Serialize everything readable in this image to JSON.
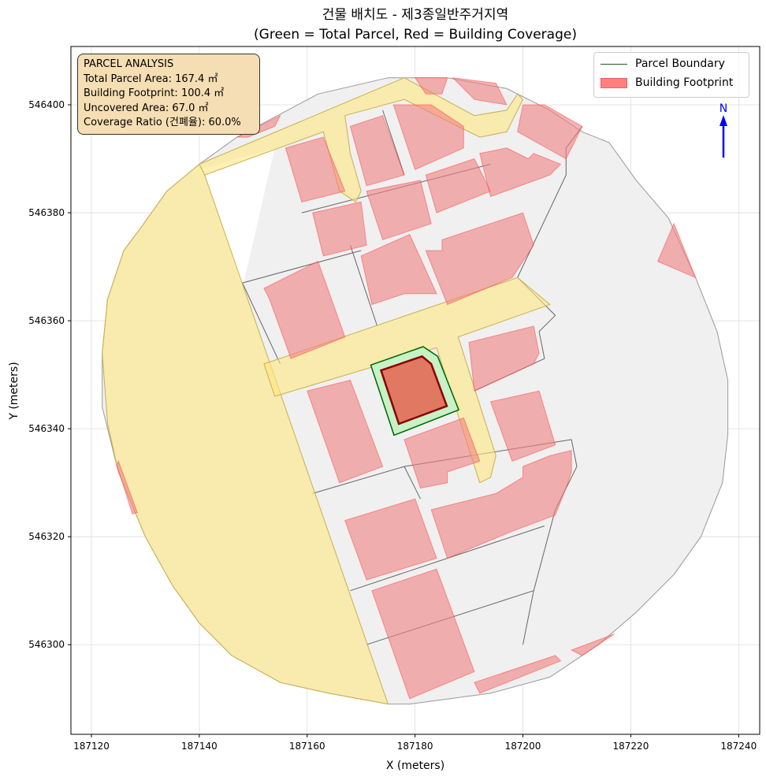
{
  "chart_data": {
    "type": "map",
    "title_line1": "건물 배치도 - 제3종일반주거지역",
    "title_line2": "(Green = Total Parcel, Red = Building Coverage)",
    "xlabel": "X (meters)",
    "ylabel": "Y (meters)",
    "xlim": [
      187116.2,
      187243.9
    ],
    "ylim": [
      546283.4,
      546410.8
    ],
    "x_ticks": [
      "187120",
      "187140",
      "187160",
      "187180",
      "187200",
      "187220",
      "187240"
    ],
    "x_tick_values": [
      187120,
      187140,
      187160,
      187180,
      187200,
      187220,
      187240
    ],
    "y_ticks": [
      "546300",
      "546320",
      "546340",
      "546360",
      "546380",
      "546400"
    ],
    "y_tick_values": [
      546300,
      546320,
      546340,
      546360,
      546380,
      546400
    ],
    "grid": true,
    "legend_placement": "top-right",
    "legend": [
      "Parcel Boundary",
      "Building Footprint"
    ],
    "north_label": "N",
    "coordinate_origin": [
      187120,
      546400
    ],
    "site_outline": [
      [
        2,
        -46
      ],
      [
        3,
        -36
      ],
      [
        6,
        -27
      ],
      [
        9,
        -23
      ],
      [
        14,
        -16
      ],
      [
        20,
        -11
      ],
      [
        27,
        -6
      ],
      [
        42,
        2
      ],
      [
        55,
        5
      ],
      [
        66,
        5
      ],
      [
        77,
        3
      ],
      [
        85,
        -1
      ],
      [
        91,
        -5
      ],
      [
        96,
        -7
      ],
      [
        101,
        -14
      ],
      [
        107,
        -21
      ],
      [
        112,
        -32
      ],
      [
        116,
        -42
      ],
      [
        118,
        -51
      ],
      [
        118,
        -61
      ],
      [
        117,
        -70
      ],
      [
        113,
        -80
      ],
      [
        108,
        -87
      ],
      [
        101,
        -94
      ],
      [
        94,
        -100
      ],
      [
        85,
        -106
      ],
      [
        74,
        -109
      ],
      [
        59,
        -111
      ],
      [
        55,
        -111
      ],
      [
        44,
        -109
      ],
      [
        35,
        -107
      ],
      [
        26,
        -102
      ],
      [
        20,
        -96
      ],
      [
        15,
        -89
      ],
      [
        10,
        -80
      ],
      [
        5,
        -68
      ],
      [
        2,
        -56
      ]
    ],
    "excluded_area": [
      [
        20,
        -12
      ],
      [
        34,
        -8
      ],
      [
        28,
        -34
      ],
      [
        21,
        -13
      ]
    ],
    "roads": [
      [
        [
          20,
          -11
        ],
        [
          21,
          -13
        ],
        [
          55,
          -111
        ],
        [
          44,
          -109
        ],
        [
          35,
          -107
        ],
        [
          26,
          -102
        ],
        [
          20,
          -96
        ],
        [
          15,
          -89
        ],
        [
          10,
          -80
        ],
        [
          5,
          -68
        ],
        [
          3,
          -59
        ],
        [
          2,
          -46
        ],
        [
          3,
          -36
        ],
        [
          6,
          -27
        ],
        [
          9,
          -23
        ],
        [
          14,
          -16
        ]
      ],
      [
        [
          20,
          -11
        ],
        [
          58,
          5
        ],
        [
          71,
          -2
        ],
        [
          77,
          -1
        ],
        [
          79,
          2
        ],
        [
          80,
          1
        ],
        [
          77,
          -5
        ],
        [
          72,
          -6
        ],
        [
          58,
          1
        ],
        [
          47,
          -2
        ],
        [
          48,
          -9
        ],
        [
          50,
          -16
        ],
        [
          49,
          -18
        ],
        [
          46,
          -16
        ],
        [
          43,
          -5
        ],
        [
          21,
          -13
        ]
      ],
      [
        [
          32,
          -48
        ],
        [
          79,
          -32
        ],
        [
          85,
          -37
        ],
        [
          68,
          -43
        ],
        [
          75,
          -65
        ],
        [
          74,
          -69
        ],
        [
          72,
          -70
        ],
        [
          64,
          -45
        ],
        [
          34,
          -54
        ]
      ]
    ],
    "neighbor_buildings": [
      [
        [
          36,
          -8
        ],
        [
          43,
          -6
        ],
        [
          47,
          -16
        ],
        [
          39,
          -18
        ]
      ],
      [
        [
          48,
          -4
        ],
        [
          54,
          -2
        ],
        [
          58,
          -13
        ],
        [
          51,
          -15
        ]
      ],
      [
        [
          56,
          0
        ],
        [
          63,
          0
        ],
        [
          69,
          -4
        ],
        [
          69,
          -8
        ],
        [
          60,
          -12
        ]
      ],
      [
        [
          60,
          5
        ],
        [
          66,
          5
        ],
        [
          65,
          2
        ],
        [
          62,
          2
        ]
      ],
      [
        [
          67,
          5
        ],
        [
          75,
          4
        ],
        [
          77,
          0
        ],
        [
          71,
          1
        ],
        [
          69,
          3
        ]
      ],
      [
        [
          41,
          -20
        ],
        [
          50,
          -18
        ],
        [
          51,
          -26
        ],
        [
          43,
          -28
        ]
      ],
      [
        [
          51,
          -16
        ],
        [
          61,
          -14
        ],
        [
          63,
          -22
        ],
        [
          54,
          -25
        ]
      ],
      [
        [
          62,
          -13
        ],
        [
          71,
          -10
        ],
        [
          74,
          -16
        ],
        [
          64,
          -20
        ]
      ],
      [
        [
          72,
          -9
        ],
        [
          77,
          -8
        ],
        [
          81,
          -10
        ],
        [
          82,
          -9
        ],
        [
          87,
          -11
        ],
        [
          85,
          -13
        ],
        [
          74,
          -17
        ]
      ],
      [
        [
          80,
          0
        ],
        [
          84,
          0
        ],
        [
          91,
          -4
        ],
        [
          88,
          -10
        ],
        [
          79,
          -5
        ]
      ],
      [
        [
          50,
          -28
        ],
        [
          59,
          -24
        ],
        [
          64,
          -35
        ],
        [
          58,
          -35
        ],
        [
          52,
          -37
        ]
      ],
      [
        [
          62,
          -27
        ],
        [
          65,
          -27
        ],
        [
          65,
          -25
        ],
        [
          80,
          -20
        ],
        [
          82,
          -26
        ],
        [
          78,
          -32
        ],
        [
          66,
          -37
        ]
      ],
      [
        [
          32,
          -34
        ],
        [
          42,
          -29
        ],
        [
          47,
          -43
        ],
        [
          37,
          -47
        ],
        [
          33,
          -36
        ]
      ],
      [
        [
          70,
          -44
        ],
        [
          82,
          -41
        ],
        [
          83,
          -46
        ],
        [
          82,
          -48
        ],
        [
          71,
          -53
        ]
      ],
      [
        [
          74,
          -55
        ],
        [
          83,
          -53
        ],
        [
          86,
          -63
        ],
        [
          78,
          -66
        ]
      ],
      [
        [
          40,
          -53
        ],
        [
          48,
          -51
        ],
        [
          54,
          -67
        ],
        [
          46,
          -70
        ]
      ],
      [
        [
          58,
          -62
        ],
        [
          69,
          -58
        ],
        [
          72,
          -66
        ],
        [
          66,
          -68
        ],
        [
          66,
          -70
        ],
        [
          61,
          -71
        ]
      ],
      [
        [
          63,
          -75
        ],
        [
          75,
          -72
        ],
        [
          80,
          -69
        ],
        [
          80,
          -67
        ],
        [
          85,
          -65
        ],
        [
          89,
          -64
        ],
        [
          89,
          -68
        ],
        [
          88,
          -71
        ],
        [
          86,
          -76
        ],
        [
          78,
          -79
        ],
        [
          66,
          -84
        ]
      ],
      [
        [
          47,
          -77
        ],
        [
          60,
          -73
        ],
        [
          64,
          -84
        ],
        [
          51,
          -88
        ]
      ],
      [
        [
          52,
          -90
        ],
        [
          64,
          -86
        ],
        [
          71,
          -105
        ],
        [
          59,
          -110
        ]
      ],
      [
        [
          105,
          -29
        ],
        [
          108,
          -22
        ],
        [
          112,
          -32
        ]
      ],
      [
        [
          71,
          -107
        ],
        [
          86,
          -102
        ],
        [
          87,
          -103
        ],
        [
          72,
          -109
        ]
      ],
      [
        [
          89,
          -101
        ],
        [
          97,
          -98
        ],
        [
          91,
          -102
        ]
      ],
      [
        [
          5,
          -66
        ],
        [
          8.5,
          -75.5
        ],
        [
          7.6,
          -75.8
        ],
        [
          4.7,
          -66.7
        ]
      ],
      [
        [
          27,
          -6
        ],
        [
          35,
          -2
        ],
        [
          34,
          -4
        ],
        [
          29,
          -6
        ]
      ]
    ],
    "parcel_lines": [
      [
        [
          91,
          -4
        ],
        [
          88,
          -8
        ],
        [
          88,
          -13
        ],
        [
          79,
          -32
        ],
        [
          86,
          -39
        ],
        [
          83,
          -42
        ],
        [
          84,
          -47
        ],
        [
          71,
          -53
        ]
      ],
      [
        [
          89,
          -62
        ],
        [
          90,
          -67
        ],
        [
          86,
          -75
        ],
        [
          82,
          -90
        ],
        [
          80,
          -100
        ]
      ],
      [
        [
          39,
          -20
        ],
        [
          74,
          -11
        ]
      ],
      [
        [
          41,
          -72
        ],
        [
          58,
          -67
        ],
        [
          89,
          -62
        ]
      ],
      [
        [
          48,
          -90
        ],
        [
          84,
          -78
        ]
      ],
      [
        [
          51,
          -100
        ],
        [
          82,
          -90
        ]
      ],
      [
        [
          54,
          -1
        ],
        [
          58,
          -13
        ]
      ],
      [
        [
          48,
          -26
        ],
        [
          53,
          -41
        ]
      ],
      [
        [
          58,
          -67
        ],
        [
          61,
          -73
        ]
      ],
      [
        [
          35,
          -48
        ],
        [
          28,
          -33
        ],
        [
          50,
          -27
        ]
      ]
    ],
    "subject_parcel": {
      "label": "Parcel Boundary",
      "polygon": [
        [
          51.8,
          -48.2
        ],
        [
          61.5,
          -44.8
        ],
        [
          64.2,
          -46.6
        ],
        [
          68.1,
          -56.5
        ],
        [
          56.1,
          -61.2
        ]
      ]
    },
    "subject_building": {
      "label": "Building Footprint",
      "polygon": [
        [
          53.7,
          -49.2
        ],
        [
          61.3,
          -46.6
        ],
        [
          63.0,
          -48.0
        ],
        [
          65.9,
          -55.8
        ],
        [
          57.0,
          -59.1
        ]
      ]
    },
    "colors": {
      "site": "#f0f0f0",
      "road": "#ffe680",
      "neighbor_building": "#f08080",
      "parcel_fill": "#c6f2c6",
      "parcel_stroke": "#006400",
      "building_fill": "#e07862",
      "building_stroke": "#8b0000",
      "north_arrow": "#0000ff"
    }
  },
  "info_box": {
    "heading": "PARCEL ANALYSIS",
    "total_area": "Total Parcel Area: 167.4 ㎡",
    "footprint": "Building Footprint: 100.4 ㎡",
    "uncovered": "Uncovered Area: 67.0 ㎡",
    "coverage": "Coverage Ratio (건폐율): 60.0%"
  }
}
